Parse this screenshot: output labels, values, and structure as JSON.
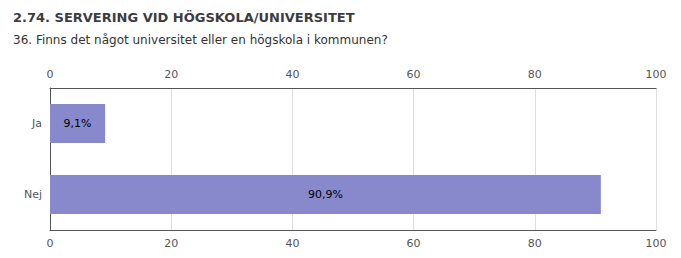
{
  "chart_data": {
    "type": "bar",
    "orientation": "horizontal",
    "title": "2.74. SERVERING VID HÖGSKOLA/UNIVERSITET",
    "subtitle": "36. Finns det något universitet eller en högskola i kommunen?",
    "categories": [
      "Ja",
      "Nej"
    ],
    "values": [
      9.1,
      90.9
    ],
    "value_labels": [
      "9,1%",
      "90,9%"
    ],
    "data_labels": true,
    "color": "#8888cc",
    "xlim": [
      0,
      100
    ],
    "xticks": [
      0,
      20,
      40,
      60,
      80,
      100
    ],
    "grid": true
  }
}
